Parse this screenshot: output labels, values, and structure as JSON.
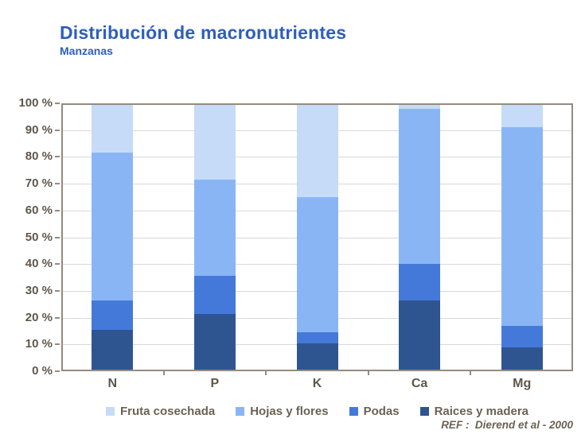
{
  "slide": {
    "title": "Distribución de macronutrientes",
    "subtitle": "Manzanas",
    "ref_text": "REF :  Dierend et al - 2000"
  },
  "colors": {
    "title_blue": "#2e5fb8",
    "axis_text": "#5f574b",
    "legend_text": "#6b6254",
    "plot_border": "#948b7f",
    "gridline": "#d9d9d9"
  },
  "chart_data": {
    "type": "bar",
    "stacked": true,
    "title": "Distribución de macronutrientes",
    "subtitle": "Manzanas",
    "categories": [
      "N",
      "P",
      "K",
      "Ca",
      "Mg"
    ],
    "series": [
      {
        "name": "Fruta cosechada",
        "color": "#c5dbf7",
        "values": [
          18.5,
          28.5,
          35.0,
          1.5,
          9.0
        ]
      },
      {
        "name": "Hojas y flores",
        "color": "#8ab5f5",
        "values": [
          55.0,
          36.0,
          50.5,
          58.0,
          74.0
        ]
      },
      {
        "name": "Podas",
        "color": "#4479da",
        "values": [
          11.0,
          14.0,
          4.0,
          13.5,
          8.0
        ]
      },
      {
        "name": "Raices y madera",
        "color": "#2f5591",
        "values": [
          15.5,
          21.5,
          10.5,
          26.5,
          9.0
        ]
      }
    ],
    "stack_order_bottom_to_top": [
      "Raices y madera",
      "Podas",
      "Hojas y flores",
      "Fruta cosechada"
    ],
    "xlabel": "",
    "ylabel": "",
    "ylim": [
      0,
      100
    ],
    "yticks": [
      0,
      10,
      20,
      30,
      40,
      50,
      60,
      70,
      80,
      90,
      100
    ],
    "ytick_labels": [
      "0 %",
      "10 %",
      "20 %",
      "30 %",
      "40 %",
      "50 %",
      "60 %",
      "70 %",
      "80 %",
      "90 %",
      "100 %"
    ],
    "grid": true,
    "legend_position": "bottom"
  }
}
